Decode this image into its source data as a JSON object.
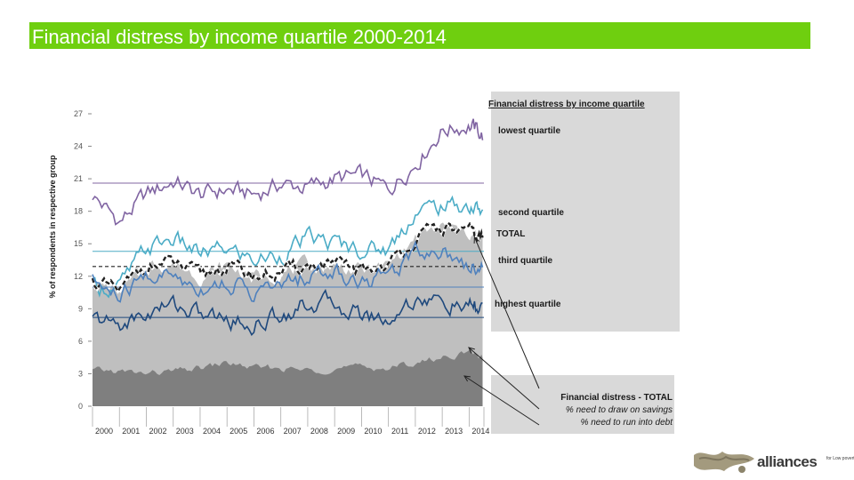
{
  "header": {
    "title": "Financial distress by income quartile 2000-2014"
  },
  "chart_data": {
    "type": "line",
    "title": "Financial distress by income quartile",
    "ylabel": "% of respondents in respective group",
    "xlabel": "",
    "ylim": [
      0,
      27
    ],
    "y_ticks": [
      "0",
      "3",
      "6",
      "9",
      "12",
      "15",
      "18",
      "21",
      "24",
      "27"
    ],
    "x_ticks": [
      "2000",
      "2001",
      "2002",
      "2003",
      "2004",
      "2005",
      "2006",
      "2007",
      "2008",
      "2009",
      "2010",
      "2011",
      "2012",
      "2013",
      "2014"
    ],
    "x": [
      2000,
      2001,
      2002,
      2003,
      2004,
      2005,
      2006,
      2007,
      2008,
      2009,
      2010,
      2011,
      2012,
      2013,
      2014,
      2014.5
    ],
    "series": [
      {
        "name": "lowest quartile",
        "color": "#8064a2",
        "average": 20.6,
        "values": [
          19.5,
          17.0,
          19.5,
          20.8,
          19.5,
          20.0,
          19.5,
          20.5,
          20.2,
          21.0,
          21.2,
          20.0,
          22.5,
          25.5,
          26.0,
          25.0
        ]
      },
      {
        "name": "second quartile",
        "color": "#4bacc6",
        "average": 14.3,
        "values": [
          11.0,
          11.0,
          14.5,
          15.5,
          14.0,
          14.5,
          13.5,
          14.0,
          15.5,
          15.0,
          14.5,
          14.5,
          18.0,
          18.5,
          18.5,
          18.0
        ]
      },
      {
        "name": "TOTAL",
        "color": "#222222",
        "average": 12.9,
        "values": [
          11.5,
          10.5,
          13.0,
          13.2,
          12.0,
          13.0,
          12.0,
          12.3,
          13.0,
          13.0,
          12.5,
          13.0,
          15.5,
          16.5,
          16.0,
          15.5
        ]
      },
      {
        "name": "third quartile",
        "color": "#4f81bd",
        "average": 11.0,
        "values": [
          11.5,
          10.0,
          12.0,
          12.0,
          11.0,
          11.5,
          10.5,
          11.0,
          12.0,
          12.5,
          11.5,
          12.0,
          14.5,
          14.5,
          13.0,
          13.0
        ]
      },
      {
        "name": "highest quartile",
        "color": "#1f497d",
        "average": 8.2,
        "values": [
          8.0,
          7.5,
          8.5,
          9.5,
          8.5,
          8.0,
          7.5,
          8.5,
          9.5,
          9.5,
          8.5,
          8.0,
          10.0,
          9.5,
          9.0,
          9.0
        ]
      }
    ],
    "area_series": [
      {
        "name": "% need to draw on savings",
        "color": "#bfbfbf",
        "values": [
          11.5,
          10.5,
          13.0,
          13.2,
          12.0,
          13.0,
          12.0,
          12.3,
          13.0,
          13.0,
          12.5,
          13.0,
          15.5,
          16.5,
          16.0,
          15.5
        ]
      },
      {
        "name": "% need to run into debt",
        "color": "#7f7f7f",
        "values": [
          3.3,
          3.2,
          3.0,
          3.2,
          3.5,
          4.0,
          3.5,
          3.5,
          3.3,
          3.5,
          3.6,
          3.5,
          4.0,
          4.5,
          5.0,
          4.5
        ]
      }
    ],
    "legend_title": "Financial distress by income quartile",
    "legend_labels": [
      "lowest quartile",
      "second quartile",
      "TOTAL",
      "third quartile",
      "highest quartile"
    ],
    "legend2_title": "Financial distress - TOTAL",
    "legend2_items": [
      "% need to draw on savings",
      "% need to run into debt"
    ]
  },
  "logo": {
    "word": "alliances",
    "tagline": "for Low poverty"
  }
}
